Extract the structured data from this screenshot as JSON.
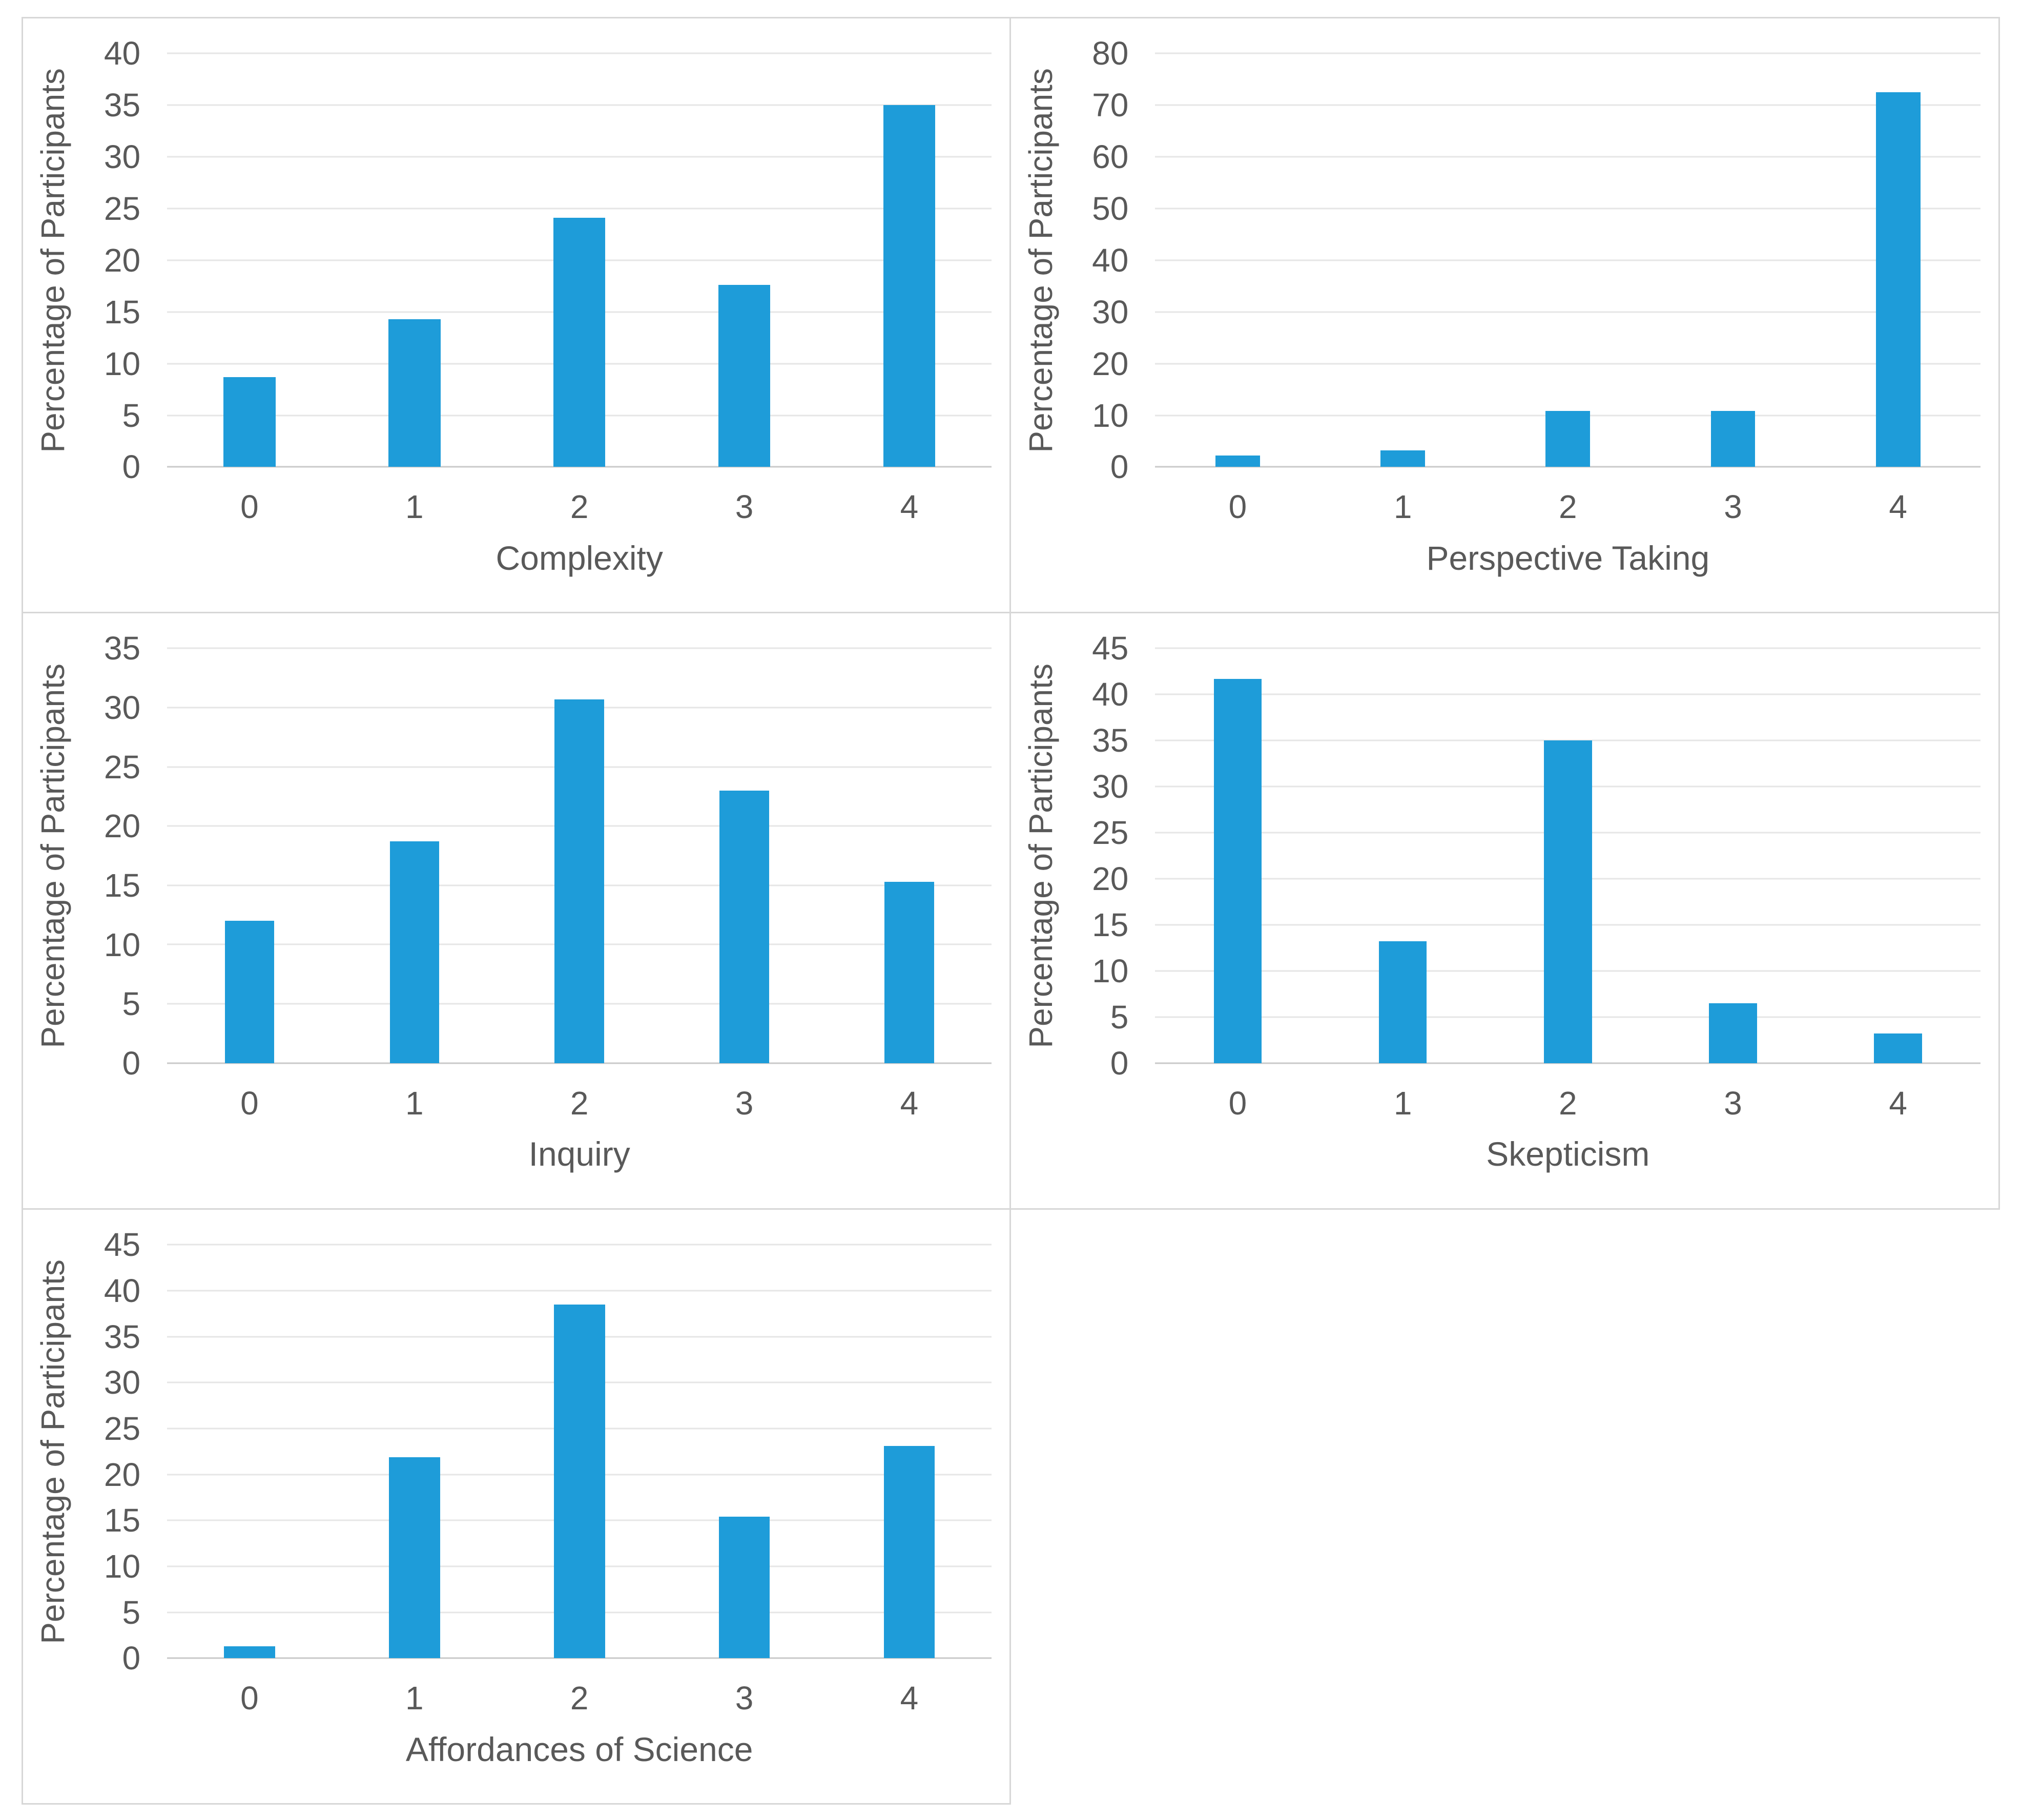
{
  "figure": {
    "description_text": "",
    "colors": {
      "bar_fill": "#1E9CD9",
      "gridline": "#E6E6E6",
      "zero_axis_line": "#C9C9C9",
      "panel_border": "#D7D7D7",
      "axis_text": "#595959",
      "background": "#FFFFFF"
    }
  },
  "chart_data": [
    {
      "type": "bar",
      "title": "",
      "xlabel": "Complexity",
      "ylabel": "Percentage of Participants",
      "categories": [
        "0",
        "1",
        "2",
        "3",
        "4"
      ],
      "values": [
        8.7,
        14.3,
        24.1,
        17.6,
        35.0
      ],
      "ylim": [
        0,
        40
      ],
      "ytick_step": 5,
      "yticks": [
        0,
        5,
        10,
        15,
        20,
        25,
        30,
        35,
        40
      ],
      "grid": true,
      "legend": false
    },
    {
      "type": "bar",
      "title": "",
      "xlabel": "Perspective Taking",
      "ylabel": "Percentage of Participants",
      "categories": [
        "0",
        "1",
        "2",
        "3",
        "4"
      ],
      "values": [
        2.2,
        3.2,
        10.8,
        10.8,
        72.5
      ],
      "ylim": [
        0,
        80
      ],
      "ytick_step": 10,
      "yticks": [
        0,
        10,
        20,
        30,
        40,
        50,
        60,
        70,
        80
      ],
      "grid": true,
      "legend": false
    },
    {
      "type": "bar",
      "title": "",
      "xlabel": "Inquiry",
      "ylabel": "Percentage of Participants",
      "categories": [
        "0",
        "1",
        "2",
        "3",
        "4"
      ],
      "values": [
        12.0,
        18.7,
        30.7,
        23.0,
        15.3
      ],
      "ylim": [
        0,
        35
      ],
      "ytick_step": 5,
      "yticks": [
        0,
        5,
        10,
        15,
        20,
        25,
        30,
        35
      ],
      "grid": true,
      "legend": false
    },
    {
      "type": "bar",
      "title": "",
      "xlabel": "Skepticism",
      "ylabel": "Percentage of Participants",
      "categories": [
        "0",
        "1",
        "2",
        "3",
        "4"
      ],
      "values": [
        41.7,
        13.2,
        35.0,
        6.5,
        3.2
      ],
      "ylim": [
        0,
        45
      ],
      "ytick_step": 5,
      "yticks": [
        0,
        5,
        10,
        15,
        20,
        25,
        30,
        35,
        40,
        45
      ],
      "grid": true,
      "legend": false
    },
    {
      "type": "bar",
      "title": "",
      "xlabel": "Affordances of Science",
      "ylabel": "Percentage of Participants",
      "categories": [
        "0",
        "1",
        "2",
        "3",
        "4"
      ],
      "values": [
        1.3,
        21.9,
        38.5,
        15.4,
        23.1
      ],
      "ylim": [
        0,
        45
      ],
      "ytick_step": 5,
      "yticks": [
        0,
        5,
        10,
        15,
        20,
        25,
        30,
        35,
        40,
        45
      ],
      "grid": true,
      "legend": false
    }
  ]
}
